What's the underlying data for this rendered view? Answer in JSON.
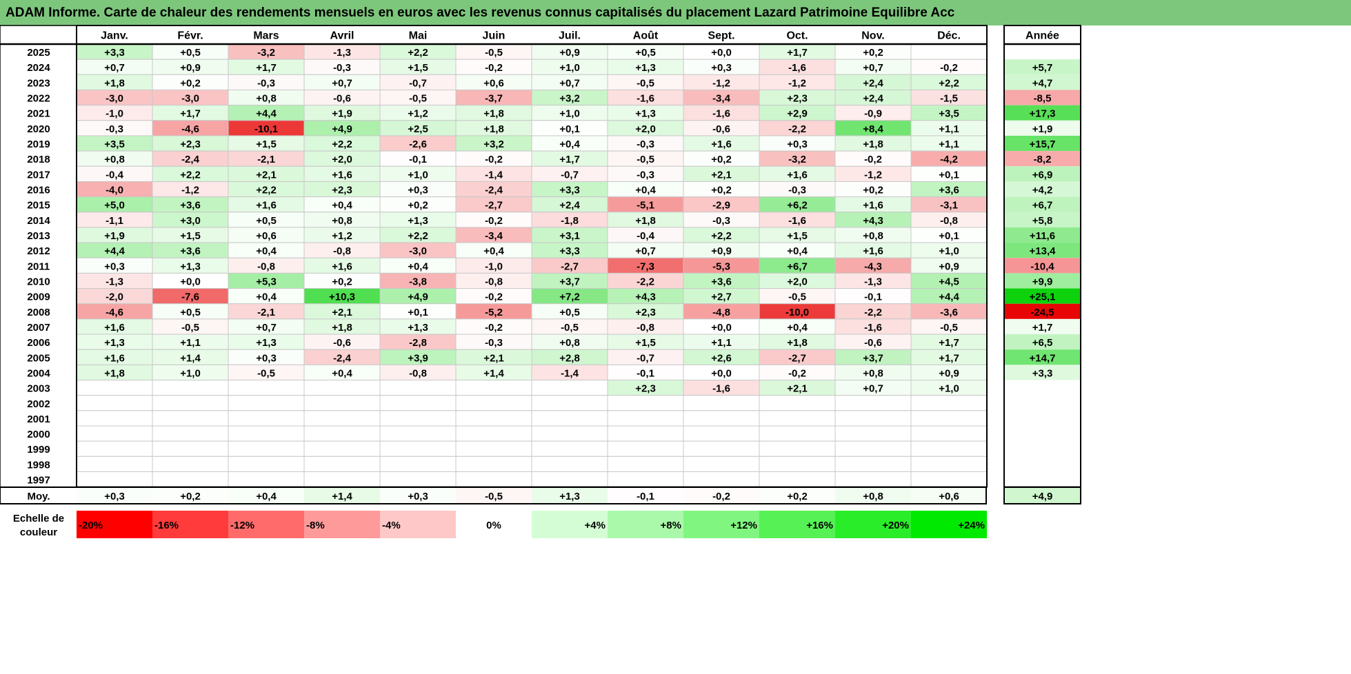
{
  "title": "ADAM Informe. Carte de chaleur des rendements mensuels en euros avec les revenus connus capitalisés du placement Lazard Patrimoine Equilibre Acc",
  "colors": {
    "positive": "#00d000",
    "negative": "#e80000",
    "neutral": "#ffffff",
    "title_bg": "#7dc77d"
  },
  "chart_data": {
    "type": "heatmap",
    "title": "ADAM Informe. Carte de chaleur des rendements mensuels en euros avec les revenus connus capitalisés du placement Lazard Patrimoine Equilibre Acc",
    "months": [
      "Janv.",
      "Févr.",
      "Mars",
      "Avril",
      "Mai",
      "Juin",
      "Juil.",
      "Août",
      "Sept.",
      "Oct.",
      "Nov.",
      "Déc."
    ],
    "year_header": "Année",
    "avg_label": "Moy.",
    "scale_label": "Echelle de couleur",
    "rows": [
      {
        "year": "2025",
        "months": [
          "+3,3",
          "+0,5",
          "-3,2",
          "-1,3",
          "+2,2",
          "-0,5",
          "+0,9",
          "+0,5",
          "+0,0",
          "+1,7",
          "+0,2",
          ""
        ],
        "annual": ""
      },
      {
        "year": "2024",
        "months": [
          "+0,7",
          "+0,9",
          "+1,7",
          "-0,3",
          "+1,5",
          "-0,2",
          "+1,0",
          "+1,3",
          "+0,3",
          "-1,6",
          "+0,7",
          "-0,2"
        ],
        "annual": "+5,7"
      },
      {
        "year": "2023",
        "months": [
          "+1,8",
          "+0,2",
          "-0,3",
          "+0,7",
          "-0,7",
          "+0,6",
          "+0,7",
          "-0,5",
          "-1,2",
          "-1,2",
          "+2,4",
          "+2,2"
        ],
        "annual": "+4,7"
      },
      {
        "year": "2022",
        "months": [
          "-3,0",
          "-3,0",
          "+0,8",
          "-0,6",
          "-0,5",
          "-3,7",
          "+3,2",
          "-1,6",
          "-3,4",
          "+2,3",
          "+2,4",
          "-1,5"
        ],
        "annual": "-8,5"
      },
      {
        "year": "2021",
        "months": [
          "-1,0",
          "+1,7",
          "+4,4",
          "+1,9",
          "+1,2",
          "+1,8",
          "+1,0",
          "+1,3",
          "-1,6",
          "+2,9",
          "-0,9",
          "+3,5"
        ],
        "annual": "+17,3"
      },
      {
        "year": "2020",
        "months": [
          "-0,3",
          "-4,6",
          "-10,1",
          "+4,9",
          "+2,5",
          "+1,8",
          "+0,1",
          "+2,0",
          "-0,6",
          "-2,2",
          "+8,4",
          "+1,1"
        ],
        "annual": "+1,9"
      },
      {
        "year": "2019",
        "months": [
          "+3,5",
          "+2,3",
          "+1,5",
          "+2,2",
          "-2,6",
          "+3,2",
          "+0,4",
          "-0,3",
          "+1,6",
          "+0,3",
          "+1,8",
          "+1,1"
        ],
        "annual": "+15,7"
      },
      {
        "year": "2018",
        "months": [
          "+0,8",
          "-2,4",
          "-2,1",
          "+2,0",
          "-0,1",
          "-0,2",
          "+1,7",
          "-0,5",
          "+0,2",
          "-3,2",
          "-0,2",
          "-4,2"
        ],
        "annual": "-8,2"
      },
      {
        "year": "2017",
        "months": [
          "-0,4",
          "+2,2",
          "+2,1",
          "+1,6",
          "+1,0",
          "-1,4",
          "-0,7",
          "-0,3",
          "+2,1",
          "+1,6",
          "-1,2",
          "+0,1"
        ],
        "annual": "+6,9"
      },
      {
        "year": "2016",
        "months": [
          "-4,0",
          "-1,2",
          "+2,2",
          "+2,3",
          "+0,3",
          "-2,4",
          "+3,3",
          "+0,4",
          "+0,2",
          "-0,3",
          "+0,2",
          "+3,6"
        ],
        "annual": "+4,2"
      },
      {
        "year": "2015",
        "months": [
          "+5,0",
          "+3,6",
          "+1,6",
          "+0,4",
          "+0,2",
          "-2,7",
          "+2,4",
          "-5,1",
          "-2,9",
          "+6,2",
          "+1,6",
          "-3,1"
        ],
        "annual": "+6,7"
      },
      {
        "year": "2014",
        "months": [
          "-1,1",
          "+3,0",
          "+0,5",
          "+0,8",
          "+1,3",
          "-0,2",
          "-1,8",
          "+1,8",
          "-0,3",
          "-1,6",
          "+4,3",
          "-0,8"
        ],
        "annual": "+5,8"
      },
      {
        "year": "2013",
        "months": [
          "+1,9",
          "+1,5",
          "+0,6",
          "+1,2",
          "+2,2",
          "-3,4",
          "+3,1",
          "-0,4",
          "+2,2",
          "+1,5",
          "+0,8",
          "+0,1"
        ],
        "annual": "+11,6"
      },
      {
        "year": "2012",
        "months": [
          "+4,4",
          "+3,6",
          "+0,4",
          "-0,8",
          "-3,0",
          "+0,4",
          "+3,3",
          "+0,7",
          "+0,9",
          "+0,4",
          "+1,6",
          "+1,0"
        ],
        "annual": "+13,4"
      },
      {
        "year": "2011",
        "months": [
          "+0,3",
          "+1,3",
          "-0,8",
          "+1,6",
          "+0,4",
          "-1,0",
          "-2,7",
          "-7,3",
          "-5,3",
          "+6,7",
          "-4,3",
          "+0,9"
        ],
        "annual": "-10,4"
      },
      {
        "year": "2010",
        "months": [
          "-1,3",
          "+0,0",
          "+5,3",
          "+0,2",
          "-3,8",
          "-0,8",
          "+3,7",
          "-2,2",
          "+3,6",
          "+2,0",
          "-1,3",
          "+4,5"
        ],
        "annual": "+9,9"
      },
      {
        "year": "2009",
        "months": [
          "-2,0",
          "-7,6",
          "+0,4",
          "+10,3",
          "+4,9",
          "-0,2",
          "+7,2",
          "+4,3",
          "+2,7",
          "-0,5",
          "-0,1",
          "+4,4"
        ],
        "annual": "+25,1"
      },
      {
        "year": "2008",
        "months": [
          "-4,6",
          "+0,5",
          "-2,1",
          "+2,1",
          "+0,1",
          "-5,2",
          "+0,5",
          "+2,3",
          "-4,8",
          "-10,0",
          "-2,2",
          "-3,6"
        ],
        "annual": "-24,5"
      },
      {
        "year": "2007",
        "months": [
          "+1,6",
          "-0,5",
          "+0,7",
          "+1,8",
          "+1,3",
          "-0,2",
          "-0,5",
          "-0,8",
          "+0,0",
          "+0,4",
          "-1,6",
          "-0,5"
        ],
        "annual": "+1,7"
      },
      {
        "year": "2006",
        "months": [
          "+1,3",
          "+1,1",
          "+1,3",
          "-0,6",
          "-2,8",
          "-0,3",
          "+0,8",
          "+1,5",
          "+1,1",
          "+1,8",
          "-0,6",
          "+1,7"
        ],
        "annual": "+6,5"
      },
      {
        "year": "2005",
        "months": [
          "+1,6",
          "+1,4",
          "+0,3",
          "-2,4",
          "+3,9",
          "+2,1",
          "+2,8",
          "-0,7",
          "+2,6",
          "-2,7",
          "+3,7",
          "+1,7"
        ],
        "annual": "+14,7"
      },
      {
        "year": "2004",
        "months": [
          "+1,8",
          "+1,0",
          "-0,5",
          "+0,4",
          "-0,8",
          "+1,4",
          "-1,4",
          "-0,1",
          "+0,0",
          "-0,2",
          "+0,8",
          "+0,9"
        ],
        "annual": "+3,3"
      },
      {
        "year": "2003",
        "months": [
          "",
          "",
          "",
          "",
          "",
          "",
          "",
          "+2,3",
          "-1,6",
          "+2,1",
          "+0,7",
          "+1,0"
        ],
        "annual": ""
      },
      {
        "year": "2002",
        "months": [
          "",
          "",
          "",
          "",
          "",
          "",
          "",
          "",
          "",
          "",
          "",
          ""
        ],
        "annual": ""
      },
      {
        "year": "2001",
        "months": [
          "",
          "",
          "",
          "",
          "",
          "",
          "",
          "",
          "",
          "",
          "",
          ""
        ],
        "annual": ""
      },
      {
        "year": "2000",
        "months": [
          "",
          "",
          "",
          "",
          "",
          "",
          "",
          "",
          "",
          "",
          "",
          ""
        ],
        "annual": ""
      },
      {
        "year": "1999",
        "months": [
          "",
          "",
          "",
          "",
          "",
          "",
          "",
          "",
          "",
          "",
          "",
          ""
        ],
        "annual": ""
      },
      {
        "year": "1998",
        "months": [
          "",
          "",
          "",
          "",
          "",
          "",
          "",
          "",
          "",
          "",
          "",
          ""
        ],
        "annual": ""
      },
      {
        "year": "1997",
        "months": [
          "",
          "",
          "",
          "",
          "",
          "",
          "",
          "",
          "",
          "",
          "",
          ""
        ],
        "annual": ""
      }
    ],
    "average": {
      "months": [
        "+0,3",
        "+0,2",
        "+0,4",
        "+1,4",
        "+0,3",
        "-0,5",
        "+1,3",
        "-0,1",
        "-0,2",
        "+0,2",
        "+0,8",
        "+0,6"
      ],
      "annual": "+4,9"
    },
    "scale": [
      "-20%",
      "-16%",
      "-12%",
      "-8%",
      "-4%",
      "0%",
      "+4%",
      "+8%",
      "+12%",
      "+16%",
      "+20%",
      "+24%"
    ],
    "scale_colors": [
      "#ff0000",
      "#ff3b3b",
      "#ff6b6b",
      "#ff9a9a",
      "#ffc8c8",
      "#ffffff",
      "#d5fdd5",
      "#aaf9aa",
      "#80f580",
      "#55f155",
      "#2aed2a",
      "#00e900"
    ]
  }
}
